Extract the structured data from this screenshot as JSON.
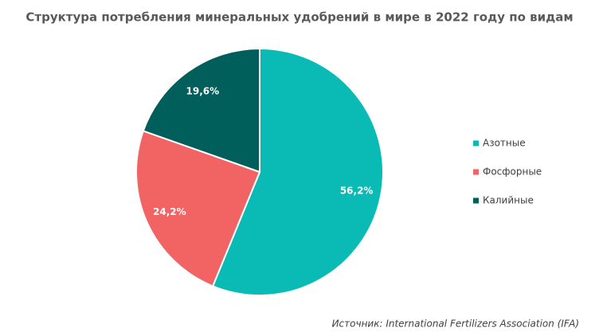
{
  "chart_data": {
    "type": "pie",
    "title": "Структура потребления минеральных удобрений в мире в 2022 году по видам",
    "categories": [
      "Азотные",
      "Фосфорные",
      "Калийные"
    ],
    "values": [
      56.2,
      24.2,
      19.6
    ],
    "value_labels": [
      "56,2%",
      "24,2%",
      "19,6%"
    ],
    "colors": [
      "#0abab5",
      "#f26464",
      "#005f5a"
    ],
    "legend": "right",
    "source": "Источник: International Fertilizers Association (IFA)"
  }
}
